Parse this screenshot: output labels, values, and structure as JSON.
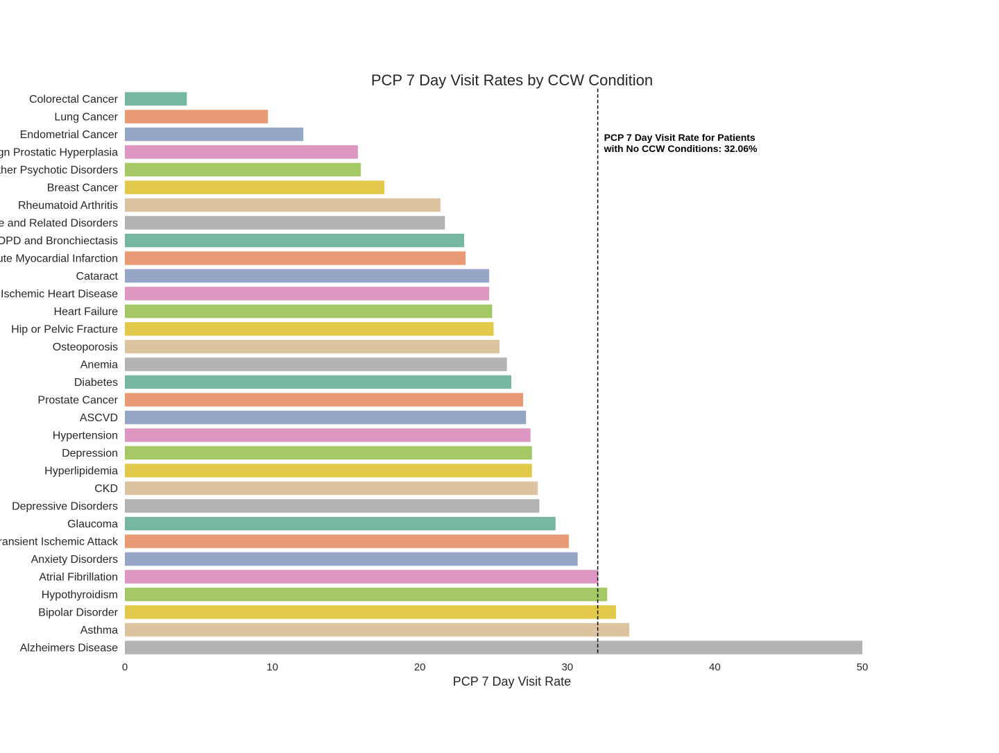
{
  "chart_data": {
    "type": "bar",
    "orientation": "horizontal",
    "title": "PCP 7 Day Visit Rates by CCW Condition",
    "xlabel": "PCP 7 Day Visit Rate",
    "ylabel": "",
    "xlim": [
      0,
      50
    ],
    "xticks": [
      "0",
      "10",
      "20",
      "30",
      "40",
      "50"
    ],
    "grid": false,
    "legend": "none",
    "categories": [
      "Colorectal Cancer",
      "Lung Cancer",
      "Endometrial Cancer",
      "Benign Prostatic Hyperplasia",
      "Schizophrenia and Other Psychotic Disorders",
      "Breast Cancer",
      "Rheumatoid Arthritis",
      "Alzheimers Disease and Related Disorders",
      "COPD and Bronchiectasis",
      "Acute Myocardial Infarction",
      "Cataract",
      "Ischemic Heart Disease",
      "Heart Failure",
      "Hip or Pelvic Fracture",
      "Osteoporosis",
      "Anemia",
      "Diabetes",
      "Prostate Cancer",
      "ASCVD",
      "Hypertension",
      "Depression",
      "Hyperlipidemia",
      "CKD",
      "Depressive Disorders",
      "Glaucoma",
      "Stroke / Transient Ischemic Attack",
      "Anxiety Disorders",
      "Atrial Fibrillation",
      "Hypothyroidism",
      "Bipolar Disorder",
      "Asthma",
      "Alzheimers Disease"
    ],
    "values": [
      4.2,
      9.7,
      12.1,
      15.8,
      16.0,
      17.6,
      21.4,
      21.7,
      23.0,
      23.1,
      24.7,
      24.7,
      24.9,
      25.0,
      25.4,
      25.9,
      26.2,
      27.0,
      27.2,
      27.5,
      27.6,
      27.6,
      28.0,
      28.1,
      29.2,
      30.1,
      30.7,
      32.1,
      32.7,
      33.3,
      34.2,
      50.0
    ],
    "palette": [
      "#76b7a0",
      "#e99a75",
      "#95a6c6",
      "#dc96c1",
      "#a3c865",
      "#e3c94a",
      "#dcc4a0",
      "#b3b3b3"
    ],
    "reference_line": {
      "value": 32.06,
      "style": "dashed",
      "color": "#000000",
      "annotation": [
        "PCP 7 Day Visit Rate for Patients",
        "with No CCW Conditions: 32.06%"
      ]
    }
  }
}
